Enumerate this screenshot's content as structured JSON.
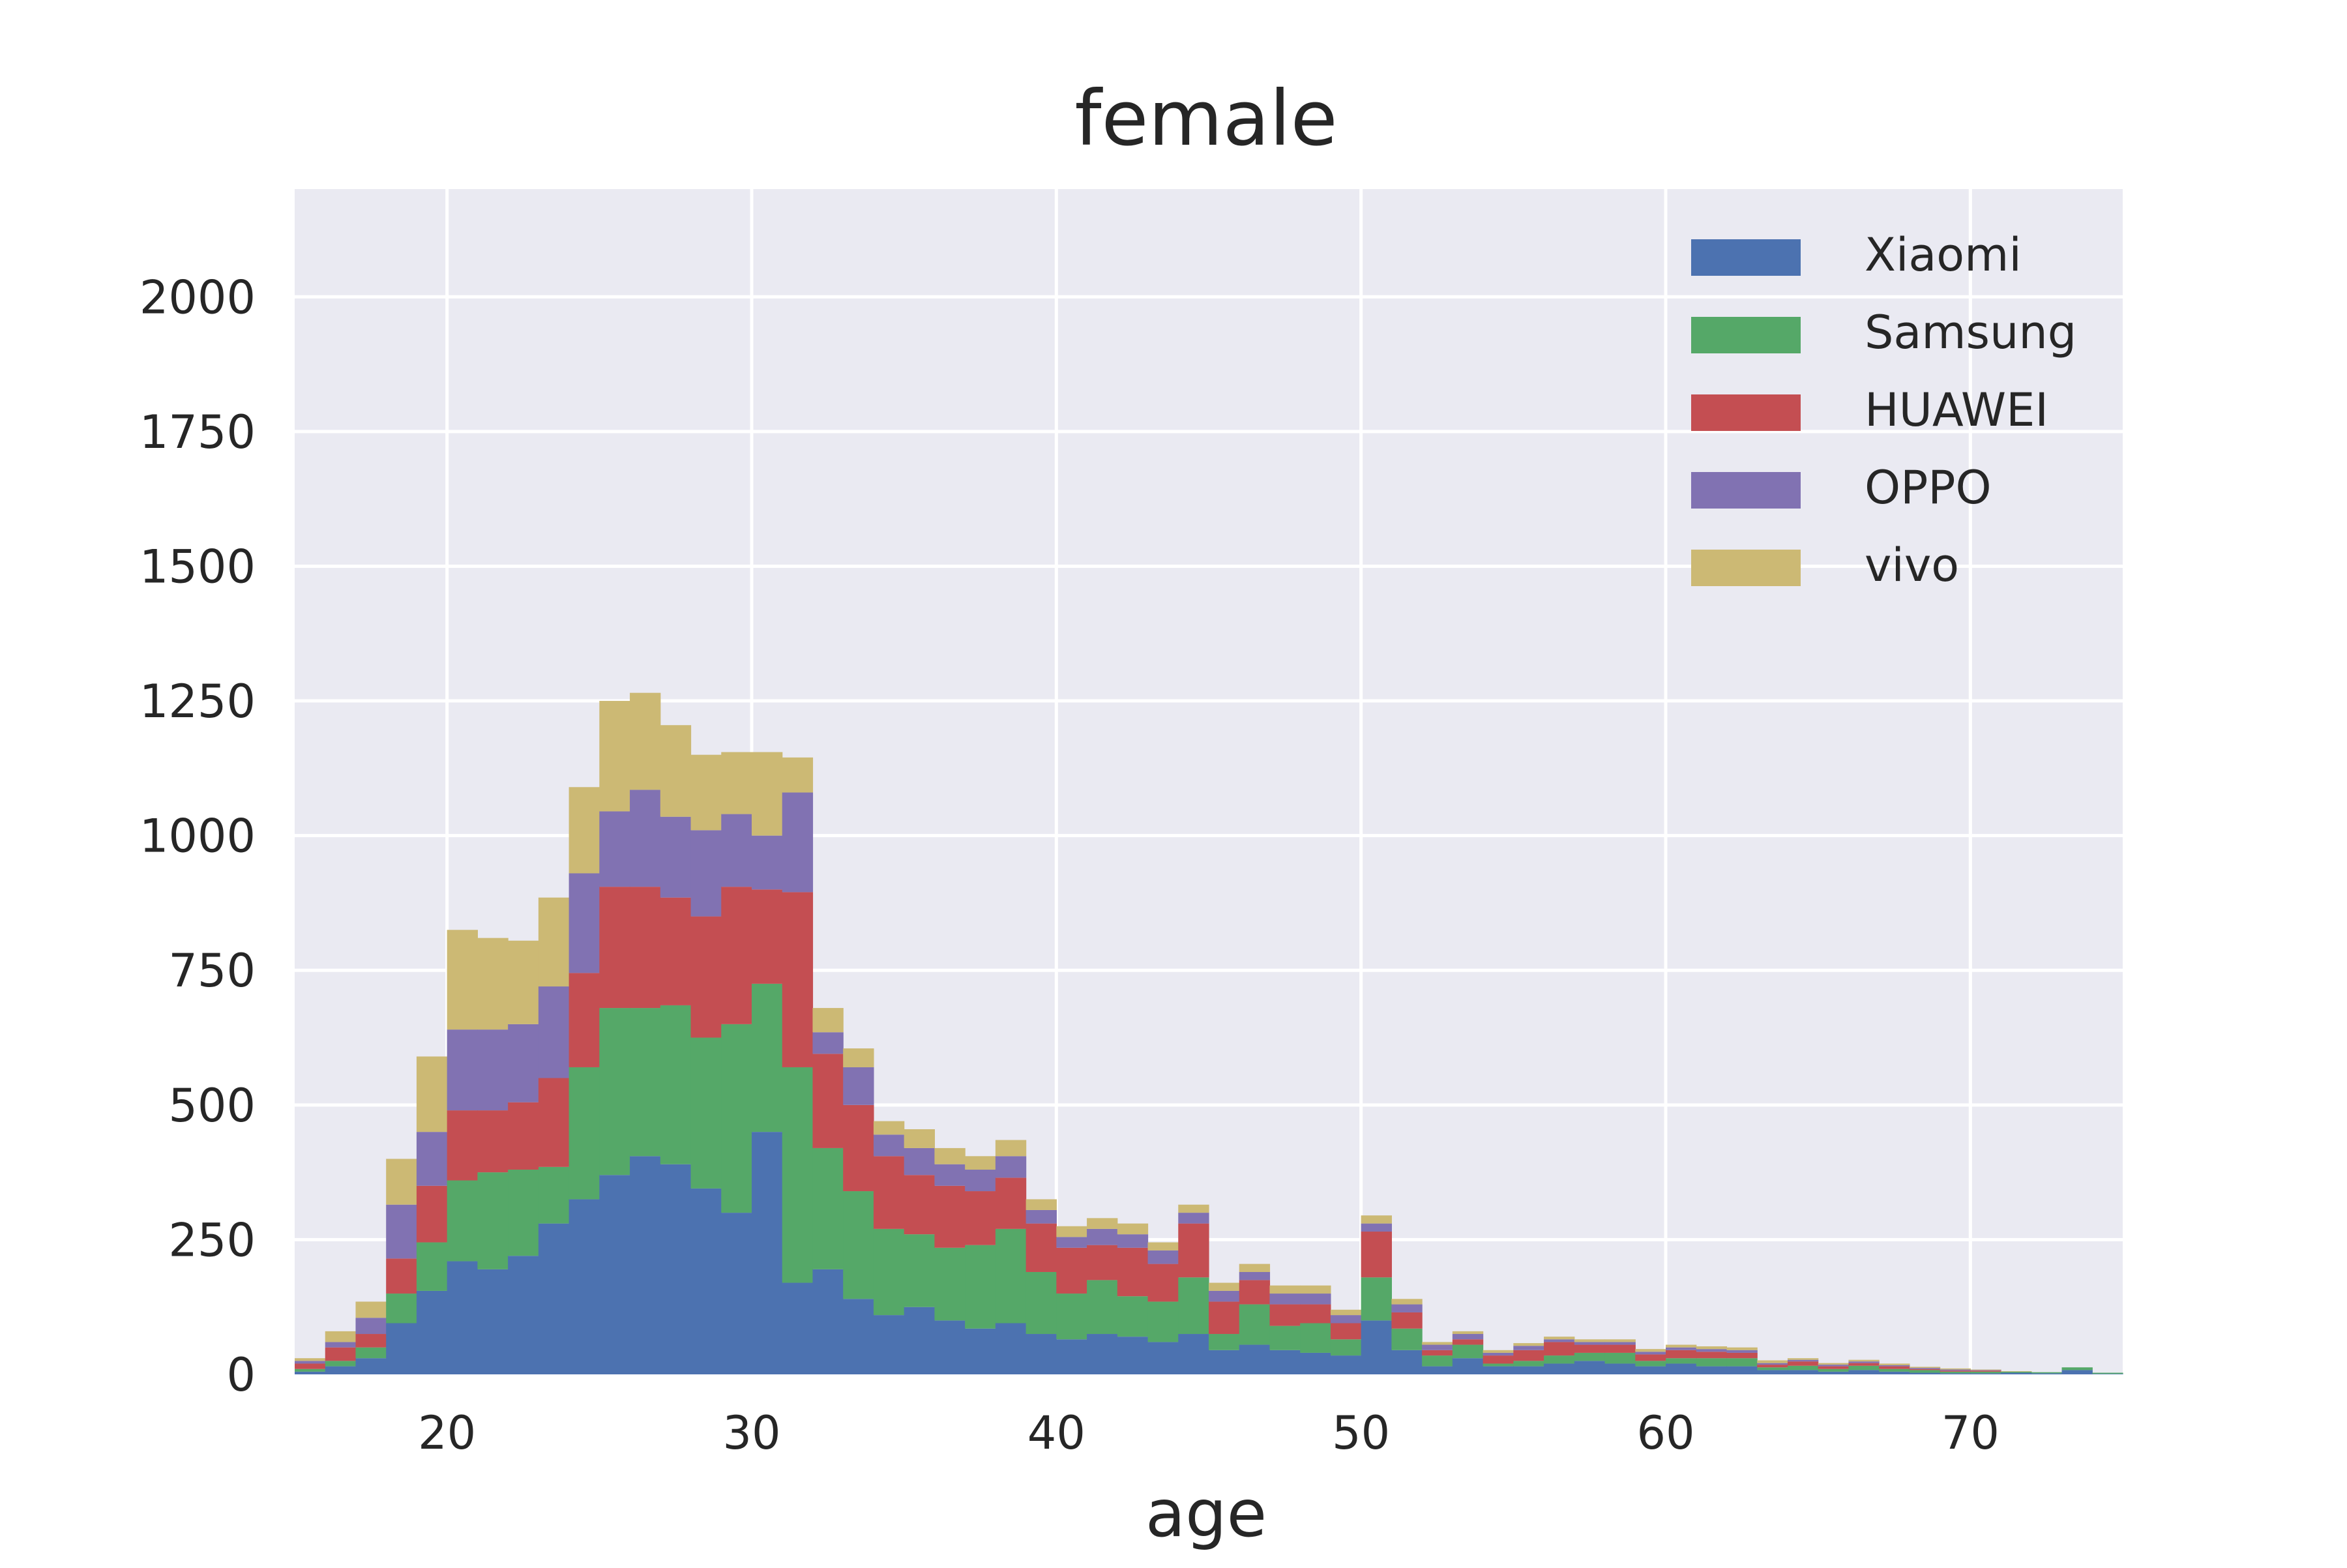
{
  "chart_data": {
    "type": "bar",
    "stacked": true,
    "histogram": true,
    "title": "female",
    "xlabel": "age",
    "ylabel": "",
    "xlim": [
      15,
      75
    ],
    "ylim": [
      0,
      2200
    ],
    "xticks": [
      20,
      30,
      40,
      50,
      60,
      70
    ],
    "yticks": [
      0,
      250,
      500,
      750,
      1000,
      1250,
      1500,
      1750,
      2000
    ],
    "grid": true,
    "legend_position": "top-right",
    "bin_start": 15,
    "bin_width": 1,
    "colors": {
      "Xiaomi": "#4C72B0",
      "Samsung": "#55A868",
      "HUAWEI": "#C44E52",
      "OPPO": "#8172B2",
      "vivo": "#CCB974",
      "background": "#EAEAF2",
      "grid": "#FFFFFF"
    },
    "series": [
      {
        "name": "Xiaomi",
        "values": [
          5,
          15,
          30,
          95,
          155,
          210,
          195,
          220,
          280,
          325,
          370,
          405,
          390,
          345,
          300,
          450,
          170,
          195,
          140,
          110,
          125,
          100,
          85,
          95,
          75,
          65,
          75,
          70,
          60,
          75,
          45,
          55,
          45,
          40,
          35,
          100,
          45,
          15,
          30,
          15,
          15,
          20,
          25,
          20,
          15,
          20,
          15,
          15,
          8,
          8,
          5,
          8,
          5,
          3,
          2,
          2,
          3,
          2,
          8,
          1
        ]
      },
      {
        "name": "Samsung",
        "values": [
          5,
          10,
          20,
          55,
          90,
          150,
          180,
          160,
          105,
          245,
          310,
          275,
          295,
          280,
          350,
          275,
          400,
          225,
          200,
          160,
          135,
          135,
          155,
          175,
          115,
          85,
          100,
          75,
          75,
          105,
          30,
          75,
          45,
          55,
          30,
          80,
          40,
          20,
          25,
          5,
          10,
          15,
          15,
          20,
          10,
          10,
          15,
          15,
          5,
          8,
          5,
          8,
          5,
          5,
          3,
          3,
          2,
          2,
          5,
          2
        ]
      },
      {
        "name": "HUAWEI",
        "values": [
          10,
          25,
          25,
          65,
          105,
          130,
          115,
          125,
          165,
          175,
          225,
          225,
          200,
          225,
          255,
          175,
          325,
          175,
          160,
          135,
          110,
          115,
          100,
          95,
          90,
          85,
          65,
          90,
          70,
          100,
          60,
          45,
          40,
          35,
          30,
          85,
          30,
          10,
          10,
          15,
          20,
          25,
          15,
          15,
          12,
          15,
          12,
          10,
          5,
          8,
          5,
          5,
          5,
          2,
          2,
          2,
          0,
          0,
          0,
          0
        ]
      },
      {
        "name": "OPPO",
        "values": [
          5,
          10,
          30,
          100,
          100,
          150,
          150,
          145,
          170,
          185,
          140,
          180,
          150,
          160,
          135,
          100,
          185,
          40,
          70,
          40,
          50,
          40,
          40,
          40,
          25,
          20,
          30,
          25,
          25,
          20,
          20,
          15,
          20,
          20,
          15,
          15,
          15,
          10,
          10,
          5,
          8,
          5,
          5,
          5,
          5,
          5,
          5,
          5,
          3,
          3,
          3,
          3,
          2,
          2,
          2,
          1,
          0,
          0,
          0,
          0
        ]
      },
      {
        "name": "vivo",
        "values": [
          5,
          20,
          30,
          85,
          140,
          185,
          170,
          155,
          165,
          160,
          205,
          180,
          170,
          140,
          115,
          155,
          65,
          45,
          35,
          25,
          35,
          30,
          25,
          30,
          20,
          20,
          20,
          20,
          15,
          15,
          15,
          15,
          15,
          15,
          10,
          15,
          10,
          5,
          5,
          5,
          5,
          5,
          5,
          5,
          5,
          5,
          5,
          5,
          5,
          3,
          3,
          3,
          3,
          2,
          2,
          1,
          1,
          0,
          0,
          0
        ]
      }
    ]
  }
}
